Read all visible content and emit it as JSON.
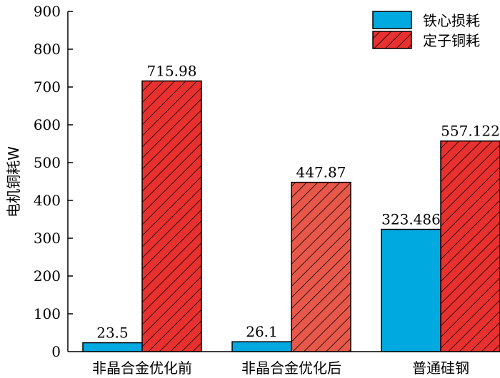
{
  "chart_data": {
    "type": "bar",
    "categories": [
      "非晶合金优化前",
      "非晶合金优化后",
      "普通硅钢"
    ],
    "series": [
      {
        "name": "铁心损耗",
        "values": [
          23.5,
          26.1,
          323.486
        ],
        "labels": [
          "23.5",
          "26.1",
          "323.486"
        ],
        "color": "#00a9e0"
      },
      {
        "name": "定子铜耗",
        "values": [
          715.98,
          447.87,
          557.122
        ],
        "labels": [
          "715.98",
          "447.87",
          "557.122"
        ],
        "color": "#e8312f",
        "color_alt": "#e8584a",
        "pattern": "diagonal-hatch"
      }
    ],
    "ylabel": "电机铜耗W",
    "ylim": [
      0,
      900
    ],
    "yticks": [
      "0",
      "100",
      "200",
      "300",
      "400",
      "500",
      "600",
      "700",
      "800",
      "900"
    ],
    "grid": false,
    "legend_position": "top-right"
  }
}
